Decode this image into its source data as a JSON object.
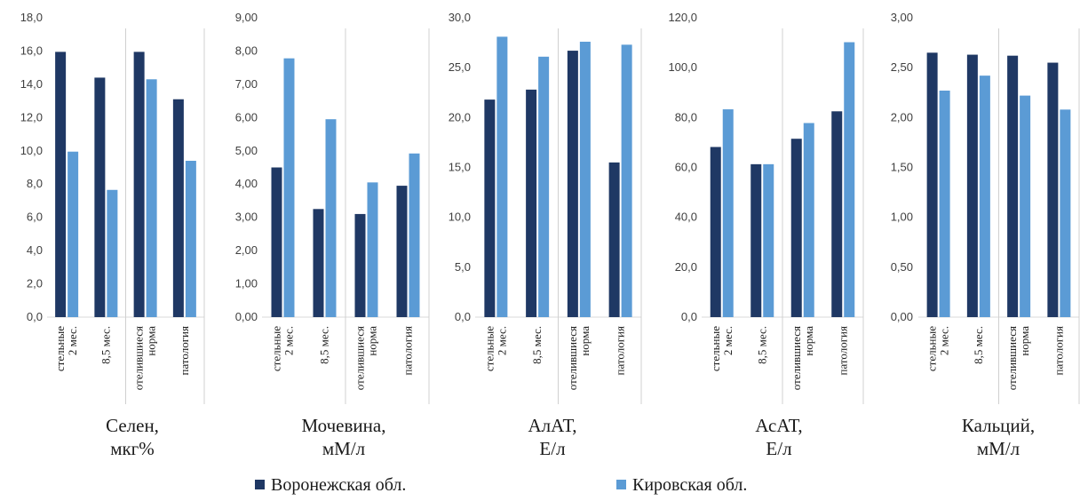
{
  "chart_data": [
    {
      "type": "bar",
      "title": "Селен, мкг%",
      "title_lines": [
        "Селен,",
        "мкг%"
      ],
      "categories": [
        [
          "стельные",
          "2 мес."
        ],
        [
          "8,5 мес."
        ],
        [
          "отелившиеся",
          "норма"
        ],
        [
          "патология"
        ]
      ],
      "series": [
        {
          "name": "Воронежская обл.",
          "values": [
            15.95,
            14.4,
            15.95,
            13.1
          ]
        },
        {
          "name": "Кировская обл.",
          "values": [
            9.95,
            7.65,
            14.3,
            9.4
          ]
        }
      ],
      "ylim": [
        0,
        18
      ],
      "yticks": [
        "0,0",
        "2,0",
        "4,0",
        "6,0",
        "8,0",
        "10,0",
        "12,0",
        "14,0",
        "16,0",
        "18,0"
      ],
      "grid": false
    },
    {
      "type": "bar",
      "title": "Мочевина, мМ/л",
      "title_lines": [
        "Мочевина,",
        "мМ/л"
      ],
      "categories": [
        [
          "стельные",
          "2 мес."
        ],
        [
          "8,5 мес."
        ],
        [
          "отелившиеся",
          "норма"
        ],
        [
          "патология"
        ]
      ],
      "series": [
        {
          "name": "Воронежская обл.",
          "values": [
            4.5,
            3.25,
            3.1,
            3.95
          ]
        },
        {
          "name": "Кировская обл.",
          "values": [
            7.78,
            5.95,
            4.05,
            4.92
          ]
        }
      ],
      "ylim": [
        0,
        9
      ],
      "yticks": [
        "0,00",
        "1,00",
        "2,00",
        "3,00",
        "4,00",
        "5,00",
        "6,00",
        "7,00",
        "8,00",
        "9,00"
      ],
      "grid": false
    },
    {
      "type": "bar",
      "title": "АлАТ, Е/л",
      "title_lines": [
        "АлАТ,",
        "Е/л"
      ],
      "categories": [
        [
          "стельные",
          "2 мес."
        ],
        [
          "8,5 мес."
        ],
        [
          "отелившиеся",
          "норма"
        ],
        [
          "патология"
        ]
      ],
      "series": [
        {
          "name": "Воронежская обл.",
          "values": [
            21.8,
            22.8,
            26.7,
            15.5
          ]
        },
        {
          "name": "Кировская обл.",
          "values": [
            28.1,
            26.1,
            27.6,
            27.3
          ]
        }
      ],
      "ylim": [
        0,
        30
      ],
      "yticks": [
        "0,0",
        "5,0",
        "10,0",
        "15,0",
        "20,0",
        "25,0",
        "30,0"
      ],
      "grid": false
    },
    {
      "type": "bar",
      "title": "АсАТ, Е/л",
      "title_lines": [
        "АсАТ,",
        "Е/л"
      ],
      "categories": [
        [
          "стельные",
          "2 мес."
        ],
        [
          "8,5 мес."
        ],
        [
          "отелившиеся",
          "норма"
        ],
        [
          "патология"
        ]
      ],
      "series": [
        {
          "name": "Воронежская обл.",
          "values": [
            68.2,
            61.3,
            71.5,
            82.5
          ]
        },
        {
          "name": "Кировская обл.",
          "values": [
            83.3,
            61.3,
            77.8,
            110.2
          ]
        }
      ],
      "ylim": [
        0,
        120
      ],
      "yticks": [
        "0,0",
        "20,0",
        "40,0",
        "60,0",
        "80,0",
        "100,0",
        "120,0"
      ],
      "grid": false
    },
    {
      "type": "bar",
      "title": "Кальций, мМ/л",
      "title_lines": [
        "Кальций,",
        "мМ/л"
      ],
      "categories": [
        [
          "стельные",
          "2 мес."
        ],
        [
          "8,5 мес."
        ],
        [
          "отелившиеся",
          "норма"
        ],
        [
          "патология"
        ]
      ],
      "series": [
        {
          "name": "Воронежская обл.",
          "values": [
            2.65,
            2.63,
            2.62,
            2.55
          ]
        },
        {
          "name": "Кировская обл.",
          "values": [
            2.27,
            2.42,
            2.22,
            2.08
          ]
        }
      ],
      "ylim": [
        0,
        3
      ],
      "yticks": [
        "0,00",
        "0,50",
        "1,00",
        "1,50",
        "2,00",
        "2,50",
        "3,00"
      ],
      "grid": false
    }
  ],
  "legend": {
    "position": "bottom",
    "items": [
      {
        "label": "Воронежская обл.",
        "color": "#1f3864"
      },
      {
        "label": "Кировская обл.",
        "color": "#5b9bd5"
      }
    ]
  },
  "colors": {
    "series_1": "#1f3864",
    "series_2": "#5b9bd5"
  }
}
